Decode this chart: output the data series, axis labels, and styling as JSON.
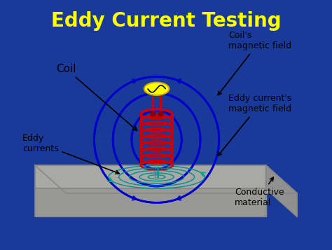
{
  "title": "Eddy Current Testing",
  "title_color": "#FFFF00",
  "bg_color": "#1a3a9a",
  "panel_bg": "#f8f8f5",
  "labels": {
    "coil": "Coil",
    "coils_field": "Coil's\nmagnetic field",
    "eddy_currents": "Eddy\ncurrents",
    "eddy_field": "Eddy current's\nmagnetic field",
    "conductive": "Conductive\nmaterial"
  },
  "coil_color": "#cc0000",
  "field_loop_color": "#0000cc",
  "eddy_current_color": "#009090",
  "wire_color": "#cc0000",
  "source_color": "#ffff00",
  "plate_top_color": "#c0c0bc",
  "plate_front_color": "#a8a8a4",
  "plate_right_color": "#909090",
  "plate_edge_color": "#888888"
}
